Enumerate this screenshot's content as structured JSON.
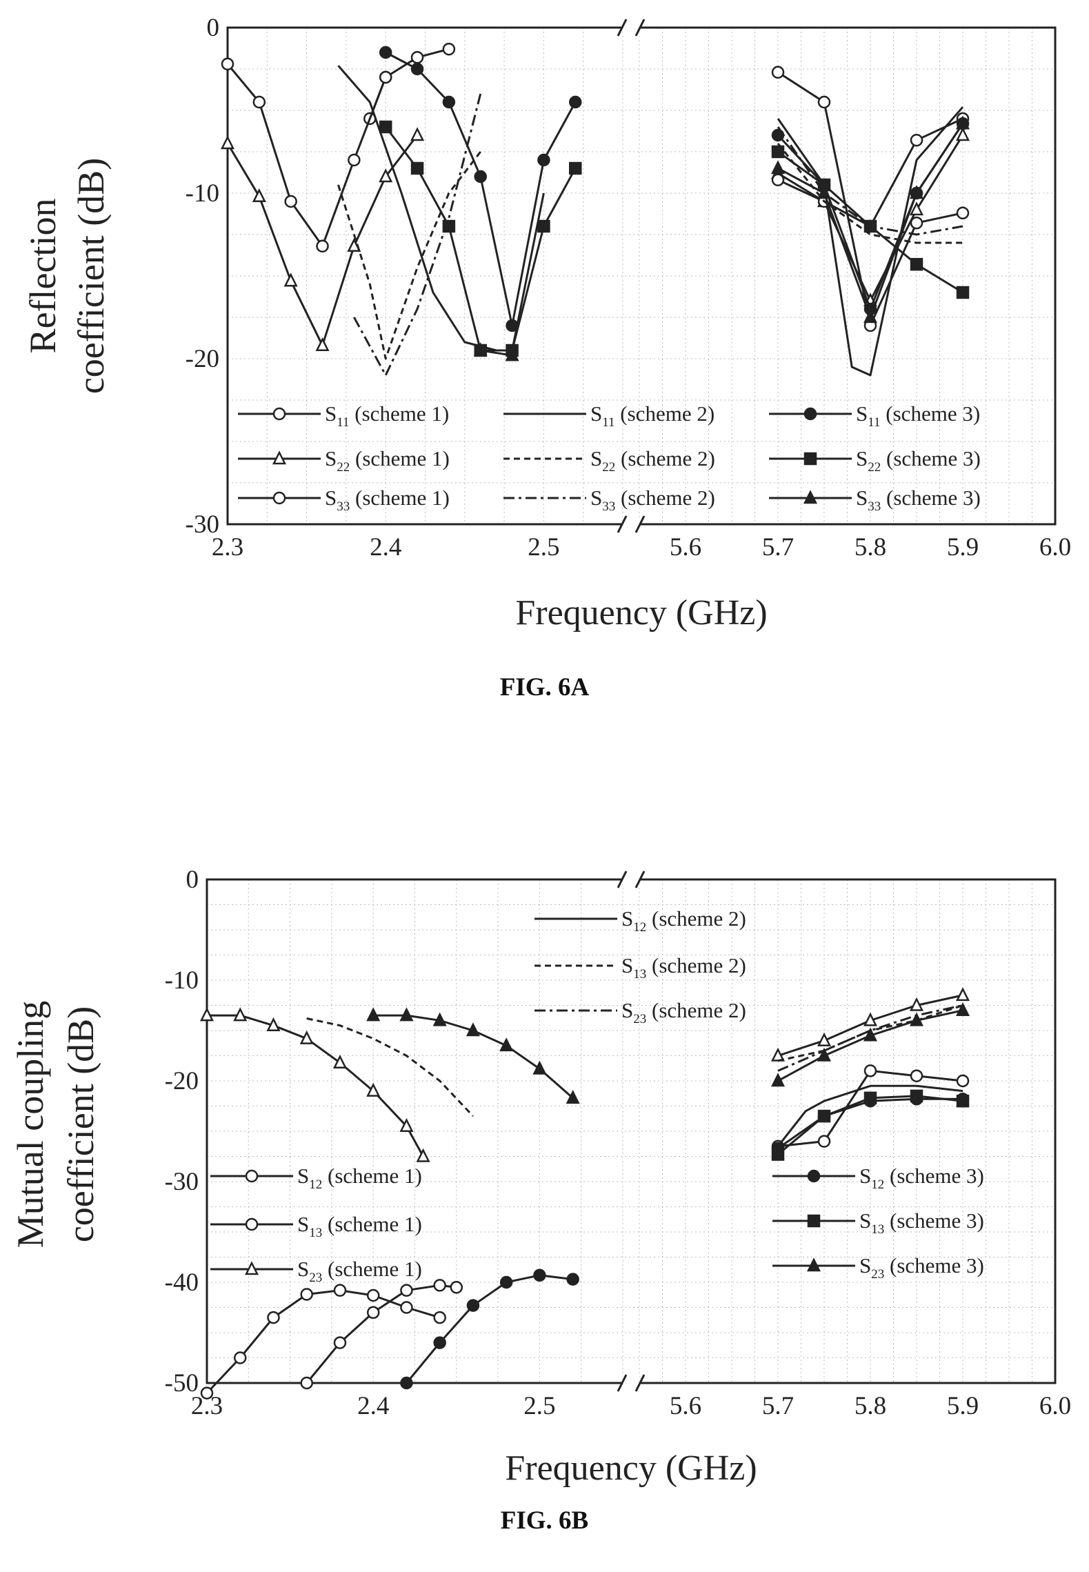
{
  "figures": [
    {
      "caption": "FIG. 6A"
    },
    {
      "caption": "FIG. 6B"
    }
  ],
  "chart_data": [
    {
      "type": "line",
      "ylabel_lines": [
        "Reflection",
        "coefficient (dB)"
      ],
      "xlabel": "Frequency (GHz)",
      "ylim": [
        -30,
        0
      ],
      "yticks": [
        "0",
        "-10",
        "-20",
        "-30"
      ],
      "x_axis_break": true,
      "xlim_segments": [
        [
          2.3,
          2.55
        ],
        [
          5.55,
          6.0
        ]
      ],
      "xticks": [
        "2.3",
        "2.4",
        "2.5",
        "5.6",
        "5.7",
        "5.8",
        "5.9",
        "6.0"
      ],
      "grid": true,
      "legend_position": "bottom",
      "series": [
        {
          "name": "S",
          "sub": "11",
          "note": " (scheme 1)",
          "style": "solid",
          "marker": "circle-open",
          "x": [
            2.39,
            2.4,
            2.42,
            2.44,
            5.7,
            5.75,
            5.8,
            5.85,
            5.9
          ],
          "y": [
            -5.5,
            -3.0,
            -1.8,
            -1.3,
            -2.7,
            -4.5,
            -18.0,
            -11.8,
            -11.2
          ]
        },
        {
          "name": "S",
          "sub": "22",
          "note": " (scheme 1)",
          "style": "solid",
          "marker": "triangle-open",
          "x": [
            2.3,
            2.32,
            2.34,
            2.36,
            2.38,
            2.4,
            2.42,
            5.7,
            5.75,
            5.8,
            5.85,
            5.9
          ],
          "y": [
            -7.0,
            -10.2,
            -15.3,
            -19.2,
            -13.2,
            -9.0,
            -6.5,
            -8.8,
            -10.5,
            -16.5,
            -11.0,
            -6.5
          ]
        },
        {
          "name": "S",
          "sub": "33",
          "note": " (scheme 1)",
          "style": "solid",
          "marker": "circle-open",
          "x": [
            2.3,
            2.32,
            2.34,
            2.36,
            2.38,
            2.4,
            5.7,
            5.75,
            5.8,
            5.85,
            5.9
          ],
          "y": [
            -2.2,
            -4.5,
            -10.5,
            -13.2,
            -8.0,
            -3.0,
            -9.2,
            -10.5,
            -12.0,
            -6.8,
            -5.5
          ]
        },
        {
          "name": "S",
          "sub": "11",
          "note": " (scheme 2)",
          "style": "solid",
          "marker": "none",
          "x": [
            2.37,
            2.39,
            2.41,
            2.43,
            2.45,
            2.47,
            2.48,
            2.5,
            5.7,
            5.75,
            5.78,
            5.8,
            5.85,
            5.9
          ],
          "y": [
            -2.3,
            -4.5,
            -10.0,
            -16.0,
            -19.0,
            -19.5,
            -19.5,
            -10.0,
            -5.5,
            -9.5,
            -20.5,
            -21.0,
            -8.0,
            -4.8
          ]
        },
        {
          "name": "S",
          "sub": "22",
          "note": " (scheme 2)",
          "style": "dashed",
          "marker": "none",
          "x": [
            2.37,
            2.39,
            2.4,
            2.42,
            2.44,
            2.46,
            5.7,
            5.75,
            5.8,
            5.85,
            5.9
          ],
          "y": [
            -9.5,
            -15.5,
            -20.0,
            -14.5,
            -10.0,
            -7.5,
            -7.0,
            -10.5,
            -12.5,
            -13.0,
            -13.0
          ]
        },
        {
          "name": "S",
          "sub": "33",
          "note": " (scheme 2)",
          "style": "dashdot",
          "marker": "none",
          "x": [
            2.38,
            2.4,
            2.42,
            2.44,
            2.46,
            5.7,
            5.75,
            5.8,
            5.85,
            5.9
          ],
          "y": [
            -17.5,
            -21.0,
            -17.0,
            -11.5,
            -4.0,
            -6.0,
            -10.0,
            -12.0,
            -12.5,
            -12.0
          ]
        },
        {
          "name": "S",
          "sub": "11",
          "note": " (scheme 3)",
          "style": "solid",
          "marker": "circle-filled",
          "x": [
            2.4,
            2.42,
            2.44,
            2.46,
            2.48,
            2.5,
            2.52,
            5.7,
            5.75,
            5.8,
            5.85,
            5.9
          ],
          "y": [
            -1.5,
            -2.5,
            -4.5,
            -9.0,
            -18.0,
            -8.0,
            -4.5,
            -6.5,
            -9.5,
            -17.0,
            -10.0,
            -5.8
          ]
        },
        {
          "name": "S",
          "sub": "22",
          "note": " (scheme 3)",
          "style": "solid",
          "marker": "square-filled",
          "x": [
            2.4,
            2.42,
            2.44,
            2.46,
            2.48,
            2.5,
            2.52,
            5.7,
            5.75,
            5.8,
            5.85,
            5.9
          ],
          "y": [
            -6.0,
            -8.5,
            -12.0,
            -19.5,
            -19.5,
            -12.0,
            -8.5,
            -7.5,
            -9.5,
            -12.0,
            -14.3,
            -16.0
          ]
        },
        {
          "name": "S",
          "sub": "33",
          "note": " (scheme 3)",
          "style": "solid",
          "marker": "triangle-filled",
          "x": [
            2.46,
            2.48,
            5.7,
            5.75,
            5.8,
            5.85,
            5.9
          ],
          "y": [
            -19.5,
            -19.8,
            -8.5,
            -10.0,
            -17.5,
            -10.0,
            -5.8
          ]
        }
      ]
    },
    {
      "type": "line",
      "ylabel_lines": [
        "Mutual coupling",
        "coefficient (dB)"
      ],
      "xlabel": "Frequency (GHz)",
      "ylim": [
        -50,
        0
      ],
      "yticks": [
        "0",
        "-10",
        "-20",
        "-30",
        "-40",
        "-50"
      ],
      "x_axis_break": true,
      "xlim_segments": [
        [
          2.3,
          2.55
        ],
        [
          5.55,
          6.0
        ]
      ],
      "xticks": [
        "2.3",
        "2.4",
        "2.5",
        "5.6",
        "5.7",
        "5.8",
        "5.9",
        "6.0"
      ],
      "grid": true,
      "legend_position": "split",
      "series": [
        {
          "name": "S",
          "sub": "12",
          "note": " (scheme 1)",
          "style": "solid",
          "marker": "circle-open",
          "x": [
            2.3,
            2.32,
            2.34,
            2.36,
            2.38,
            2.4,
            2.42,
            2.44,
            5.7,
            5.75,
            5.8,
            5.85,
            5.9
          ],
          "y": [
            -51.0,
            -47.5,
            -43.5,
            -41.2,
            -40.8,
            -41.3,
            -42.5,
            -43.5,
            -26.5,
            -26.0,
            -19.0,
            -19.5,
            -20.0
          ]
        },
        {
          "name": "S",
          "sub": "13",
          "note": " (scheme 1)",
          "style": "solid",
          "marker": "circle-open",
          "x": [
            2.36,
            2.38,
            2.4,
            2.42,
            2.44,
            2.45
          ],
          "y": [
            -50.0,
            -46.0,
            -43.0,
            -40.8,
            -40.3,
            -40.5
          ]
        },
        {
          "name": "S",
          "sub": "23",
          "note": " (scheme 1)",
          "style": "solid",
          "marker": "triangle-open",
          "x": [
            2.3,
            2.32,
            2.34,
            2.36,
            2.38,
            2.4,
            2.42,
            2.43,
            5.7,
            5.75,
            5.8,
            5.85,
            5.9
          ],
          "y": [
            -13.5,
            -13.5,
            -14.5,
            -15.8,
            -18.2,
            -21.0,
            -24.5,
            -27.5,
            -17.5,
            -16.0,
            -14.0,
            -12.5,
            -11.5
          ]
        },
        {
          "name": "S",
          "sub": "12",
          "note": " (scheme 2)",
          "style": "solid",
          "marker": "none",
          "x": [
            5.7,
            5.73,
            5.75,
            5.8,
            5.85,
            5.9
          ],
          "y": [
            -26.5,
            -23.0,
            -22.0,
            -20.5,
            -20.5,
            -21.0
          ]
        },
        {
          "name": "S",
          "sub": "13",
          "note": " (scheme 2)",
          "style": "dashed",
          "marker": "none",
          "x": [
            2.36,
            2.38,
            2.4,
            2.42,
            2.44,
            2.46,
            5.7,
            5.75,
            5.8,
            5.85,
            5.9
          ],
          "y": [
            -13.8,
            -14.5,
            -15.8,
            -17.5,
            -20.0,
            -23.5,
            -18.0,
            -17.0,
            -15.0,
            -14.0,
            -12.5
          ]
        },
        {
          "name": "S",
          "sub": "23",
          "note": " (scheme 2)",
          "style": "dashdot",
          "marker": "none",
          "x": [
            5.7,
            5.75,
            5.8,
            5.85,
            5.9
          ],
          "y": [
            -19.0,
            -17.0,
            -15.0,
            -13.5,
            -12.5
          ]
        },
        {
          "name": "S",
          "sub": "12",
          "note": " (scheme 3)",
          "style": "solid",
          "marker": "circle-filled",
          "x": [
            2.42,
            2.44,
            2.46,
            2.48,
            2.5,
            2.52,
            5.7,
            5.75,
            5.8,
            5.85,
            5.9
          ],
          "y": [
            -50.0,
            -46.0,
            -42.3,
            -40.0,
            -39.3,
            -39.7,
            -26.7,
            -23.5,
            -22.0,
            -21.8,
            -21.8
          ]
        },
        {
          "name": "S",
          "sub": "13",
          "note": " (scheme 3)",
          "style": "solid",
          "marker": "square-filled",
          "x": [
            5.7,
            5.75,
            5.8,
            5.85,
            5.9
          ],
          "y": [
            -27.3,
            -23.5,
            -21.7,
            -21.5,
            -22.0
          ]
        },
        {
          "name": "S",
          "sub": "23",
          "note": " (scheme 3)",
          "style": "solid",
          "marker": "triangle-filled",
          "x": [
            2.4,
            2.42,
            2.44,
            2.46,
            2.48,
            2.5,
            2.52,
            5.7,
            5.75,
            5.8,
            5.85,
            5.9
          ],
          "y": [
            -13.5,
            -13.5,
            -14.0,
            -15.0,
            -16.5,
            -18.8,
            -21.7,
            -20.0,
            -17.5,
            -15.5,
            -14.0,
            -13.0
          ]
        }
      ]
    }
  ]
}
